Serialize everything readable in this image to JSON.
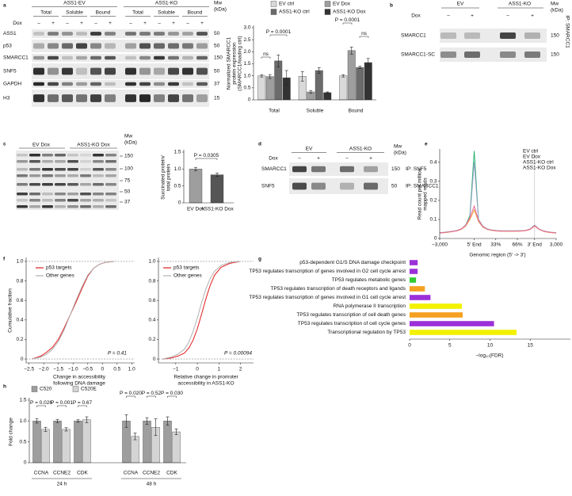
{
  "panel_labels": [
    "a",
    "b",
    "c",
    "d",
    "e",
    "f",
    "g",
    "h"
  ],
  "blots": {
    "a": {
      "groups": [
        "ASS1-EV",
        "ASS1-KO"
      ],
      "fractions": [
        "Total",
        "Soluble",
        "Bound",
        "Total",
        "Soluble",
        "Bound"
      ],
      "treatment_label": "Dox",
      "signs": [
        "–",
        "+",
        "–",
        "+",
        "–",
        "+",
        "–",
        "+",
        "–",
        "+",
        "–",
        "+"
      ],
      "rows": [
        "ASS1",
        "p53",
        "SMARCC1",
        "SNF5",
        "GAPDH",
        "H3"
      ],
      "mw_label": "Mw",
      "mw_unit": "(kDa)",
      "mw": [
        50,
        50,
        150,
        50,
        37,
        15
      ]
    },
    "b": {
      "groups": [
        "EV",
        "ASS1-KO"
      ],
      "treatment_label": "Dox",
      "signs": [
        "–",
        "+",
        "–",
        "+"
      ],
      "rows": [
        "SMARCC1",
        "SMARCC1-SC"
      ],
      "mw_label": "Mw",
      "mw_unit": "(kDa)",
      "mw": [
        150,
        150
      ],
      "ip": "IP: SMARCC1"
    },
    "c": {
      "lanes": [
        "EV Dox",
        "ASS1-KO Dox"
      ],
      "mw_label": "Mw",
      "mw_unit": "(kDa)",
      "mw": [
        150,
        100,
        75,
        50,
        37
      ]
    },
    "d": {
      "groups": [
        "EV",
        "ASS1-KO"
      ],
      "treatment_label": "Dox",
      "signs": [
        "–",
        "+",
        "–",
        "+"
      ],
      "rows": [
        "SMARCC1",
        "SNF5"
      ],
      "mw_label": "Mw",
      "mw_unit": "(kDa)",
      "mw": [
        150,
        50
      ],
      "ip": [
        "IP: SNF5",
        "IP: SMARCC1"
      ]
    }
  },
  "chart_data": [
    {
      "type": "bar",
      "y_label": [
        "Normalized SMARCC1",
        "protein expression",
        "(SMARCC1/loading ctrl)"
      ],
      "categories": [
        "Total",
        "Soluble",
        "Bound"
      ],
      "series": [
        {
          "name": "EV ctrl",
          "color": "#d9d9d9",
          "values": [
            1,
            0.98,
            1
          ],
          "errors": [
            0.05,
            0.2,
            0.05
          ]
        },
        {
          "name": "EV Dox",
          "color": "#9e9e9e",
          "values": [
            0.97,
            0.33,
            2.05
          ],
          "errors": [
            0.08,
            0.06,
            0.15
          ]
        },
        {
          "name": "ASS1-KO ctrl",
          "color": "#6b6b6b",
          "values": [
            1.62,
            1.22,
            1.35
          ],
          "errors": [
            0.25,
            0.12,
            0.05
          ]
        },
        {
          "name": "ASS1-KO Dox",
          "color": "#333333",
          "values": [
            0.92,
            0.3,
            1.55
          ],
          "errors": [
            0.3,
            0.03,
            0.17
          ]
        }
      ],
      "ylim": [
        0,
        3
      ],
      "yticks": [
        0,
        0.5,
        {
          "value": 1,
          "label": "1.0"
        },
        1.5,
        {
          "value": 2,
          "label": "2.0"
        },
        2.5,
        {
          "value": 3,
          "label": "3.0"
        }
      ],
      "annotations": [
        "ns",
        "P = 0.0001",
        "P = 0.0001",
        "ns"
      ]
    },
    {
      "type": "bar",
      "y_label": [
        "Succinated protein/",
        "total protein"
      ],
      "categories": [
        "EV Dox",
        "ASS1-KO Dox"
      ],
      "values": [
        1,
        0.83
      ],
      "errors": [
        0.05,
        0.05
      ],
      "colors": [
        "#9e9e9e",
        "#555555"
      ],
      "ylim": [
        0,
        1.5
      ],
      "yticks": [
        0,
        0.5,
        {
          "value": 1,
          "label": "1.0"
        },
        1.5
      ],
      "annotations": [
        "P = 0.0305"
      ]
    },
    {
      "type": "line",
      "y_label": [
        "Read count per million",
        "mapped reads"
      ],
      "x_label": "Genomic region (5′ -> 3′)",
      "categories": [
        "−3,000",
        null,
        null,
        null,
        null,
        null,
        null,
        null,
        "5′ End",
        null,
        null,
        null,
        null,
        "33%",
        null,
        null,
        null,
        null,
        "66%",
        null,
        null,
        null,
        "3′ End",
        null,
        null,
        null,
        null,
        "3,000"
      ],
      "series": [
        {
          "name": "EV ctrl",
          "color": "#2bb673",
          "values": [
            0.03,
            0.032,
            0.035,
            0.038,
            0.042,
            0.05,
            0.07,
            0.12,
            0.46,
            0.1,
            0.065,
            0.05,
            0.045,
            0.042,
            0.04,
            0.04,
            0.04,
            0.04,
            0.04,
            0.041,
            0.043,
            0.05,
            0.07,
            0.05,
            0.04,
            0.035,
            0.032,
            0.03
          ]
        },
        {
          "name": "EV Dox",
          "color": "#f39c34",
          "values": [
            0.028,
            0.03,
            0.033,
            0.036,
            0.04,
            0.048,
            0.065,
            0.1,
            0.15,
            0.09,
            0.06,
            0.048,
            0.043,
            0.04,
            0.038,
            0.038,
            0.038,
            0.038,
            0.038,
            0.039,
            0.041,
            0.048,
            0.065,
            0.048,
            0.038,
            0.033,
            0.03,
            0.028
          ]
        },
        {
          "name": "ASS1-KO ctrl",
          "color": "#9aa0c8",
          "values": [
            0.03,
            0.032,
            0.035,
            0.038,
            0.042,
            0.05,
            0.07,
            0.11,
            0.4,
            0.1,
            0.065,
            0.05,
            0.045,
            0.042,
            0.04,
            0.04,
            0.04,
            0.04,
            0.04,
            0.041,
            0.043,
            0.05,
            0.07,
            0.05,
            0.04,
            0.035,
            0.032,
            0.03
          ]
        },
        {
          "name": "ASS1-KO Dox",
          "color": "#e8669a",
          "values": [
            0.029,
            0.031,
            0.034,
            0.037,
            0.041,
            0.05,
            0.068,
            0.11,
            0.17,
            0.095,
            0.062,
            0.049,
            0.044,
            0.041,
            0.039,
            0.039,
            0.039,
            0.039,
            0.039,
            0.04,
            0.042,
            0.049,
            0.067,
            0.049,
            0.039,
            0.034,
            0.031,
            0.029
          ]
        }
      ],
      "ylim": [
        0,
        0.47
      ],
      "yticks": [
        0,
        0.1,
        0.2,
        0.3,
        0.4
      ]
    },
    {
      "type": "line",
      "y_label": "Cumulative fraction",
      "x_label": [
        "Change in accessibility",
        "following DNA damage"
      ],
      "series": [
        {
          "name": "p53 targets",
          "color": "#e31a1c",
          "x": [
            -2.4,
            -2.1,
            -1.9,
            -1.7,
            -1.5,
            -1.3,
            -1.1,
            -0.9,
            -0.7,
            -0.5,
            -0.3,
            -0.1,
            0.1,
            0.4
          ],
          "values": [
            0,
            0.03,
            0.07,
            0.12,
            0.2,
            0.32,
            0.45,
            0.58,
            0.72,
            0.85,
            0.93,
            0.97,
            0.99,
            1
          ]
        },
        {
          "name": "Other genes",
          "color": "#b0b0b0",
          "x": [
            -2.4,
            -2.1,
            -1.9,
            -1.7,
            -1.5,
            -1.3,
            -1.1,
            -0.9,
            -0.7,
            -0.5,
            -0.3,
            -0.1,
            0.1,
            0.4
          ],
          "values": [
            0,
            0.02,
            0.05,
            0.1,
            0.18,
            0.3,
            0.45,
            0.6,
            0.74,
            0.86,
            0.93,
            0.97,
            0.99,
            1
          ]
        }
      ],
      "xlim": [
        -2.6,
        1.1
      ],
      "ylim": [
        -0.04,
        1.04
      ],
      "xticks": [
        {
          "value": -2.5,
          "label": "−2.5"
        },
        {
          "value": -2,
          "label": "−2.0"
        },
        {
          "value": -1.5,
          "label": "−1.5"
        },
        {
          "value": -1,
          "label": "−1.0"
        },
        {
          "value": -0.5,
          "label": "−0.5"
        },
        0,
        0.5,
        {
          "value": 1,
          "label": "1.0"
        }
      ],
      "yticks": [
        0,
        0.2,
        0.4,
        0.6,
        0.8,
        {
          "value": 1,
          "label": "1.0"
        }
      ],
      "annotations": [
        "P = 0.41"
      ]
    },
    {
      "type": "line",
      "x_label": [
        "Relative change in promoter",
        "accessibility in ASS1-KO"
      ],
      "series": [
        {
          "name": "p53 targets",
          "color": "#e31a1c",
          "x": [
            -1.6,
            -1.2,
            -0.9,
            -0.6,
            -0.4,
            -0.2,
            0,
            0.2,
            0.4,
            0.6,
            0.8,
            1.1,
            1.5,
            2
          ],
          "values": [
            0,
            0.01,
            0.03,
            0.06,
            0.11,
            0.19,
            0.31,
            0.46,
            0.62,
            0.76,
            0.86,
            0.94,
            0.98,
            1
          ]
        },
        {
          "name": "Other genes",
          "color": "#b0b0b0",
          "x": [
            -1.6,
            -1.2,
            -0.9,
            -0.6,
            -0.4,
            -0.2,
            0,
            0.2,
            0.4,
            0.6,
            0.8,
            1.1,
            1.5,
            2
          ],
          "values": [
            0,
            0.02,
            0.05,
            0.1,
            0.17,
            0.28,
            0.42,
            0.58,
            0.72,
            0.83,
            0.9,
            0.96,
            0.99,
            1
          ]
        }
      ],
      "xlim": [
        -1.8,
        2.6
      ],
      "ylim": [
        -0.04,
        1.04
      ],
      "xticks": [
        {
          "value": -1,
          "label": "−1"
        },
        0,
        1,
        2
      ],
      "yticks": [
        0,
        0.2,
        0.4,
        0.6,
        0.8,
        {
          "value": 1,
          "label": "1.0"
        }
      ],
      "annotations": [
        "P = 0.00094"
      ]
    },
    {
      "type": "barh",
      "x_label": "−log₁₀(FDR)",
      "categories": [
        "p53-dependent G1/S DNA damage checkpoint",
        "TP53 regulates transcription of genes involved in G2 cell cycle arrest",
        "TP53 regulates metabolic genes",
        "TP53 regulates transcription of death receptors and ligands",
        "TP53 regulates transcription of genes involved in G1 cell cycle arrest",
        "RNA polymerase II transcription",
        "TP53 regulates transcription of cell death genes",
        "TP53 regulates transcription of cell cycle genes",
        "Transcriptional regulation by TP53"
      ],
      "values": [
        1,
        1,
        0.8,
        1.9,
        2.6,
        6.5,
        6.6,
        10.5,
        13.3
      ],
      "colors": [
        "#9b30d9",
        "#9b30d9",
        "#33cc33",
        "#f5a020",
        "#9b30d9",
        "#f2f200",
        "#f5a020",
        "#9b30d9",
        "#f2f200"
      ],
      "xlim": [
        0,
        20
      ],
      "xticks": [
        0,
        5,
        10,
        15
      ]
    },
    {
      "type": "bar",
      "y_label": "Fold change",
      "categories": [
        "CCNA",
        "CCNE2",
        "CDK",
        "CCNA",
        "CCNE2",
        "CDK"
      ],
      "groups": [
        "24 h",
        "48 h"
      ],
      "series": [
        {
          "name": "C520",
          "color": "#9e9e9e",
          "values": [
            1,
            1,
            1,
            1,
            1,
            1
          ],
          "errors": [
            0.05,
            0.04,
            0.03,
            0.15,
            0.08,
            0.1
          ]
        },
        {
          "name": "C520E",
          "color": "#d4d4d4",
          "values": [
            0.8,
            0.8,
            1.03,
            0.63,
            0.85,
            0.74
          ],
          "errors": [
            0.05,
            0.04,
            0.07,
            0.08,
            0.2,
            0.07
          ]
        }
      ],
      "ylim": [
        0,
        1.5
      ],
      "yticks": [
        0,
        0.5,
        {
          "value": 1,
          "label": "1.0"
        },
        1.5
      ],
      "annotations": [
        "P = 0.026",
        "P = 0.001",
        "P = 0.67",
        "P = 0.020",
        "P = 0.52",
        "P = 0.030"
      ]
    }
  ]
}
